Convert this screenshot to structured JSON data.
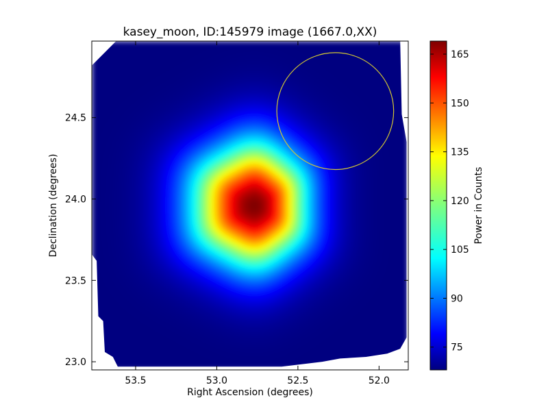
{
  "chart_data": {
    "type": "heatmap",
    "title": "kasey_moon, ID:145979 image (1667.0,XX)",
    "xlabel": "Right Ascension (degrees)",
    "ylabel": "Declination (degrees)",
    "xlim": [
      53.77,
      51.82
    ],
    "ylim": [
      22.95,
      24.97
    ],
    "x_axis_inverted": true,
    "xticks": [
      53.5,
      53.0,
      52.5,
      52.0
    ],
    "xtick_labels": [
      "53.5",
      "53.0",
      "52.5",
      "52.0"
    ],
    "yticks": [
      23.0,
      23.5,
      24.0,
      24.5
    ],
    "ytick_labels": [
      "23.0",
      "23.5",
      "24.0",
      "24.5"
    ],
    "colormap": "jet",
    "colorbar": {
      "label": "Power in Counts",
      "vmin": 68,
      "vmax": 169,
      "ticks": [
        75,
        90,
        105,
        120,
        135,
        150,
        165
      ],
      "tick_labels": [
        "75",
        "90",
        "105",
        "120",
        "135",
        "150",
        "165"
      ]
    },
    "peak": {
      "ra": 52.77,
      "dec": 23.96,
      "value": 169
    },
    "background_value": 68,
    "map_boundary_radec": [
      [
        53.62,
        24.97
      ],
      [
        53.77,
        24.82
      ],
      [
        53.77,
        23.66
      ],
      [
        53.74,
        23.62
      ],
      [
        53.73,
        23.28
      ],
      [
        53.7,
        23.25
      ],
      [
        53.69,
        23.06
      ],
      [
        53.64,
        23.03
      ],
      [
        53.61,
        22.97
      ],
      [
        52.6,
        22.97
      ],
      [
        52.35,
        23.0
      ],
      [
        52.24,
        23.02
      ],
      [
        52.08,
        23.03
      ],
      [
        51.95,
        23.05
      ],
      [
        51.87,
        23.08
      ],
      [
        51.83,
        23.15
      ],
      [
        51.83,
        24.35
      ],
      [
        51.86,
        24.52
      ],
      [
        51.87,
        24.97
      ]
    ],
    "annotation_circle": {
      "ra": 52.27,
      "dec": 24.54,
      "radius_deg": 0.36,
      "color": "#d4c832"
    },
    "grid": false,
    "legend": "none"
  }
}
